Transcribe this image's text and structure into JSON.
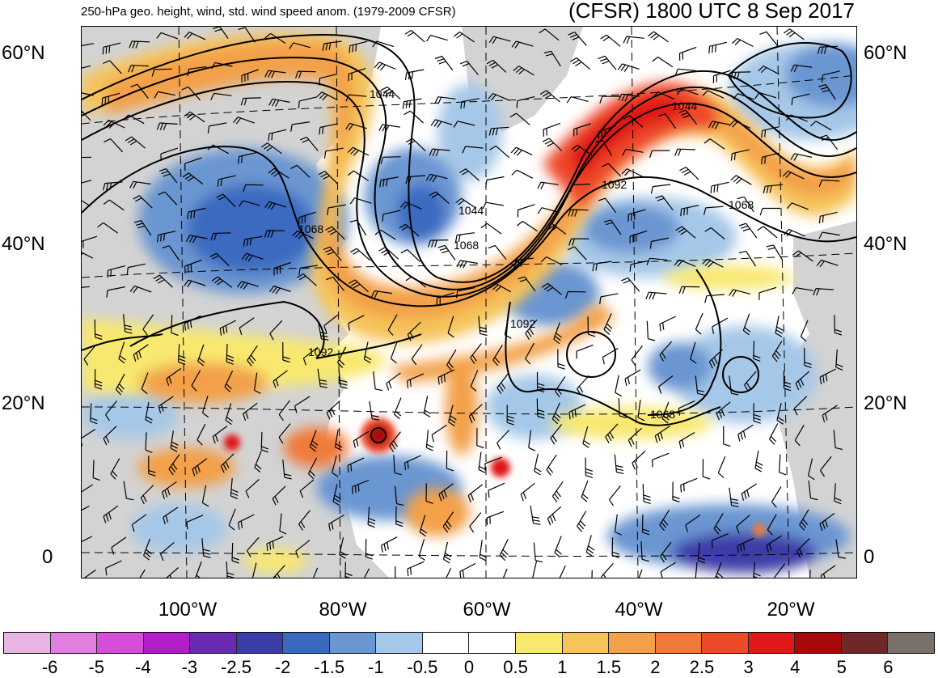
{
  "header": {
    "subtitle": "250-hPa geo. height, wind, std. wind speed anom. (1979-2009 CFSR)",
    "title": "(CFSR) 1800 UTC 8 Sep 2017"
  },
  "axes": {
    "lat_labels": [
      "60°N",
      "40°N",
      "20°N",
      "0"
    ],
    "lon_labels": [
      "100°W",
      "80°W",
      "60°W",
      "40°W",
      "20°W"
    ]
  },
  "contours": {
    "labels": [
      "1044",
      "1044",
      "1068",
      "1044",
      "1068",
      "1068",
      "1092",
      "1092",
      "1092",
      "1068",
      "1092"
    ]
  },
  "colorbar": {
    "labels": [
      "-6",
      "-5",
      "-4",
      "-3",
      "-2.5",
      "-2",
      "-1.5",
      "-1",
      "-0.5",
      "0",
      "0.5",
      "1",
      "1.5",
      "2",
      "2.5",
      "3",
      "4",
      "5",
      "6"
    ],
    "colors": [
      "#e8b4e6",
      "#e07fe0",
      "#d44ed8",
      "#b21ec8",
      "#6a2ab0",
      "#3c3ca8",
      "#3a6ac0",
      "#6a96d2",
      "#a6c8e8",
      "#ffffff",
      "#ffffff",
      "#f8e870",
      "#f6c45a",
      "#f3a04a",
      "#f07a3a",
      "#ee4a2a",
      "#e01818",
      "#a80808",
      "#6e2828",
      "#7a706c"
    ]
  },
  "land_color": "#c0c0c0",
  "contour_color": "#000000"
}
